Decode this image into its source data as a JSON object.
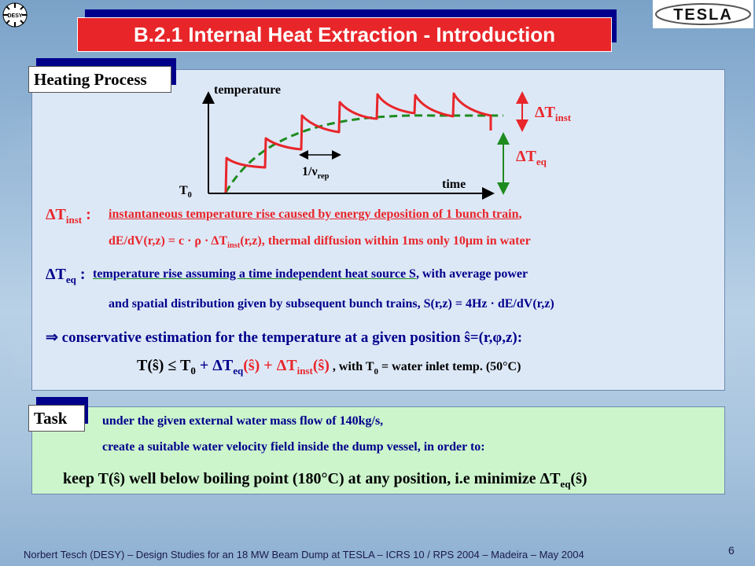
{
  "title": "B.2.1 Internal Heat Extraction - Introduction",
  "logo_text": "TESLA",
  "desy_logo_text": "DESY",
  "heating": {
    "label": "Heating Process",
    "diagram": {
      "y_axis_label": "temperature",
      "x_axis_label": "time",
      "t0_label": "T",
      "t0_sub": "0",
      "period_label": "1/ν",
      "period_sub": "rep",
      "dt_inst_label": "ΔT",
      "dt_inst_sub": "inst",
      "dt_eq_label": "ΔT",
      "dt_eq_sub": "eq"
    },
    "def_inst": {
      "sym": "ΔT",
      "sub": "inst",
      "colon": " :",
      "line1_ul": "instantaneous temperature rise caused by energy deposition of 1 bunch train",
      "line1_end": ",",
      "line2a": "dE/dV(r,z) = c · ρ · ΔT",
      "line2_sub": "inst",
      "line2b": "(r,z), thermal diffusion within 1ms only 10μm in water"
    },
    "def_eq": {
      "sym": "ΔT",
      "sub": "eq",
      "colon": " :",
      "line1_ul": "temperature rise assuming a time independent heat source S",
      "line1_end": ", with average power",
      "line2": "and spatial distribution given by subsequent bunch trains, S(r,z) = 4Hz · dE/dV(r,z)"
    },
    "conclusion": "⇒  conservative estimation for the temperature at a given position ŝ=(r,φ,z):",
    "formula": {
      "p1": "T(ŝ)  ≤  T",
      "p1_sub": "0",
      "p2": " + ΔT",
      "p2_sub": "eq",
      "p3": "(ŝ) + ΔT",
      "p3_sub": "inst",
      "p4": "(ŝ)",
      "p5": " , with T",
      "p5_sub": "0",
      "p6": " = water inlet temp. (50°C)"
    }
  },
  "task": {
    "label": "Task",
    "line1": "under the given external water mass flow of 140kg/s,",
    "line2": "create a suitable water velocity field inside the dump vessel, in order to:",
    "line3a": "keep T(ŝ) well below boiling point (180°C) at any position, i.e minimize ΔT",
    "line3_sub": "eq",
    "line3b": "(ŝ)"
  },
  "footer": "Norbert Tesch (DESY) – Design Studies for an 18 MW Beam Dump at TESLA – ICRS 10 / RPS 2004 – Madeira – May 2004",
  "page_number": "6",
  "colors": {
    "title_bg": "#e8262a",
    "title_shadow": "#00008b",
    "panel1": "#dde8f7",
    "panel2": "#ccf5cc",
    "curve": "#e8262a",
    "eq_curve": "#1e8b1e"
  }
}
